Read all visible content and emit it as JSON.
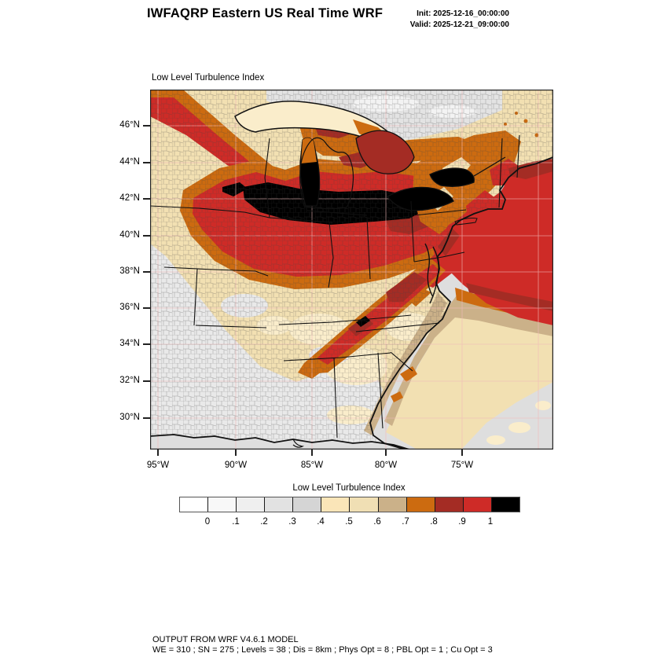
{
  "header": {
    "title": "IWFAQRP Eastern US Real Time WRF",
    "init_line": "Init: 2025-12-16_00:00:00",
    "valid_line": "Valid: 2025-12-21_09:00:00"
  },
  "map": {
    "title": "Low Level Turbulence Index",
    "lat_ticks": [
      "46°N",
      "44°N",
      "42°N",
      "40°N",
      "38°N",
      "36°N",
      "34°N",
      "32°N",
      "30°N"
    ],
    "lon_ticks": [
      "95°W",
      "90°W",
      "85°W",
      "80°W",
      "75°W"
    ]
  },
  "colorbar": {
    "title": "Low Level Turbulence Index",
    "labels": [
      "0",
      ".1",
      ".2",
      ".3",
      ".4",
      ".5",
      ".6",
      ".7",
      ".8",
      ".9",
      "1"
    ],
    "colors": [
      "#FFFFFF",
      "#F8F8F8",
      "#EFEFEF",
      "#E2E2E2",
      "#D5D5D5",
      "#FAE5B8",
      "#F0DFB4",
      "#CBB189",
      "#CC6B10",
      "#A42C24",
      "#CE2B27",
      "#000000"
    ]
  },
  "map_colors": {
    "ocean": "#DEDEDE",
    "land_cream": "#F2E0B2",
    "gray_land": "#E9E9E9",
    "canada_gray": "#E3E3E3",
    "white_patch": "#F3F3F3",
    "cream_light": "#FAEDCB",
    "tan": "#CBB189",
    "orange": "#CC6B10",
    "red": "#CE2B27",
    "dark_red": "#A42C24",
    "black": "#000000",
    "graticule": "#F0B9B9",
    "boundary": "#111111"
  },
  "footer": {
    "line1": "OUTPUT FROM WRF V4.6.1 MODEL",
    "line2": "WE = 310 ; SN = 275 ; Levels = 38 ; Dis = 8km ; Phys Opt = 8 ; PBL Opt = 1 ; Cu Opt = 3"
  }
}
